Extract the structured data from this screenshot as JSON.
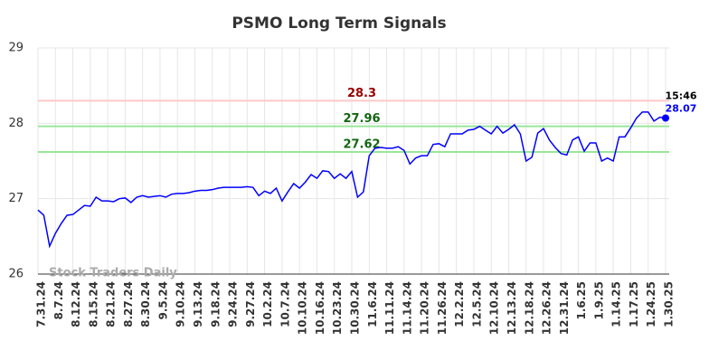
{
  "chart_data": {
    "type": "line",
    "title": "PSMO Long Term Signals",
    "watermark": "Stock Traders Daily",
    "categories": [
      "7.31.24",
      null,
      null,
      "8.7.24",
      null,
      null,
      "8.12.24",
      null,
      null,
      "8.15.24",
      null,
      null,
      "8.21.24",
      null,
      null,
      "8.27.24",
      null,
      null,
      "8.30.24",
      null,
      null,
      "9.5.24",
      null,
      null,
      "9.10.24",
      null,
      null,
      "9.13.24",
      null,
      null,
      "9.18.24",
      null,
      null,
      "9.24.24",
      null,
      null,
      "9.27.24",
      null,
      null,
      "10.2.24",
      null,
      null,
      "10.7.24",
      null,
      null,
      "10.10.24",
      null,
      null,
      "10.16.24",
      null,
      null,
      "10.23.24",
      null,
      null,
      "10.30.24",
      null,
      null,
      "11.6.24",
      null,
      null,
      "11.11.24",
      null,
      null,
      "11.14.24",
      null,
      null,
      "11.20.24",
      null,
      null,
      "11.26.24",
      null,
      null,
      "12.2.24",
      null,
      null,
      "12.5.24",
      null,
      null,
      "12.10.24",
      null,
      null,
      "12.13.24",
      null,
      null,
      "12.18.24",
      null,
      null,
      "12.26.24",
      null,
      null,
      "12.31.24",
      null,
      null,
      "1.6.25",
      null,
      null,
      "1.9.25",
      null,
      null,
      "1.14.25",
      null,
      null,
      "1.17.25",
      null,
      null,
      "1.24.25",
      null,
      null,
      "1.30.25"
    ],
    "values": [
      26.85,
      26.78,
      26.37,
      26.54,
      26.67,
      26.78,
      26.79,
      26.85,
      26.91,
      26.9,
      27.02,
      26.97,
      26.97,
      26.96,
      27.0,
      27.01,
      26.95,
      27.02,
      27.04,
      27.02,
      27.03,
      27.04,
      27.02,
      27.06,
      27.07,
      27.07,
      27.08,
      27.1,
      27.11,
      27.11,
      27.12,
      27.14,
      27.15,
      27.15,
      27.15,
      27.15,
      27.16,
      27.15,
      27.04,
      27.1,
      27.07,
      27.14,
      26.97,
      27.09,
      27.2,
      27.14,
      27.22,
      27.32,
      27.27,
      27.37,
      27.36,
      27.27,
      27.33,
      27.27,
      27.36,
      27.02,
      27.09,
      27.57,
      27.67,
      27.68,
      27.67,
      27.67,
      27.69,
      27.64,
      27.46,
      27.54,
      27.57,
      27.57,
      27.72,
      27.73,
      27.69,
      27.86,
      27.86,
      27.86,
      27.91,
      27.92,
      27.96,
      27.91,
      27.86,
      27.96,
      27.87,
      27.92,
      27.98,
      27.86,
      27.5,
      27.55,
      27.87,
      27.93,
      27.78,
      27.68,
      27.6,
      27.58,
      27.78,
      27.82,
      27.63,
      27.74,
      27.74,
      27.5,
      27.54,
      27.5,
      27.82,
      27.82,
      27.94,
      28.07,
      28.15,
      28.15,
      28.03,
      28.08,
      28.07
    ],
    "color": "#0000ff",
    "last_time": "15:46",
    "hlines": [
      {
        "value": 28.3,
        "color": "#ffc8c8",
        "label_color": "#990000"
      },
      {
        "value": 27.96,
        "color": "#99e699",
        "label_color": "#116611"
      },
      {
        "value": 27.62,
        "color": "#99e699",
        "label_color": "#116611"
      }
    ],
    "ylim": [
      26,
      29
    ],
    "yticks": [
      26,
      27,
      28,
      29
    ],
    "grid": true
  }
}
